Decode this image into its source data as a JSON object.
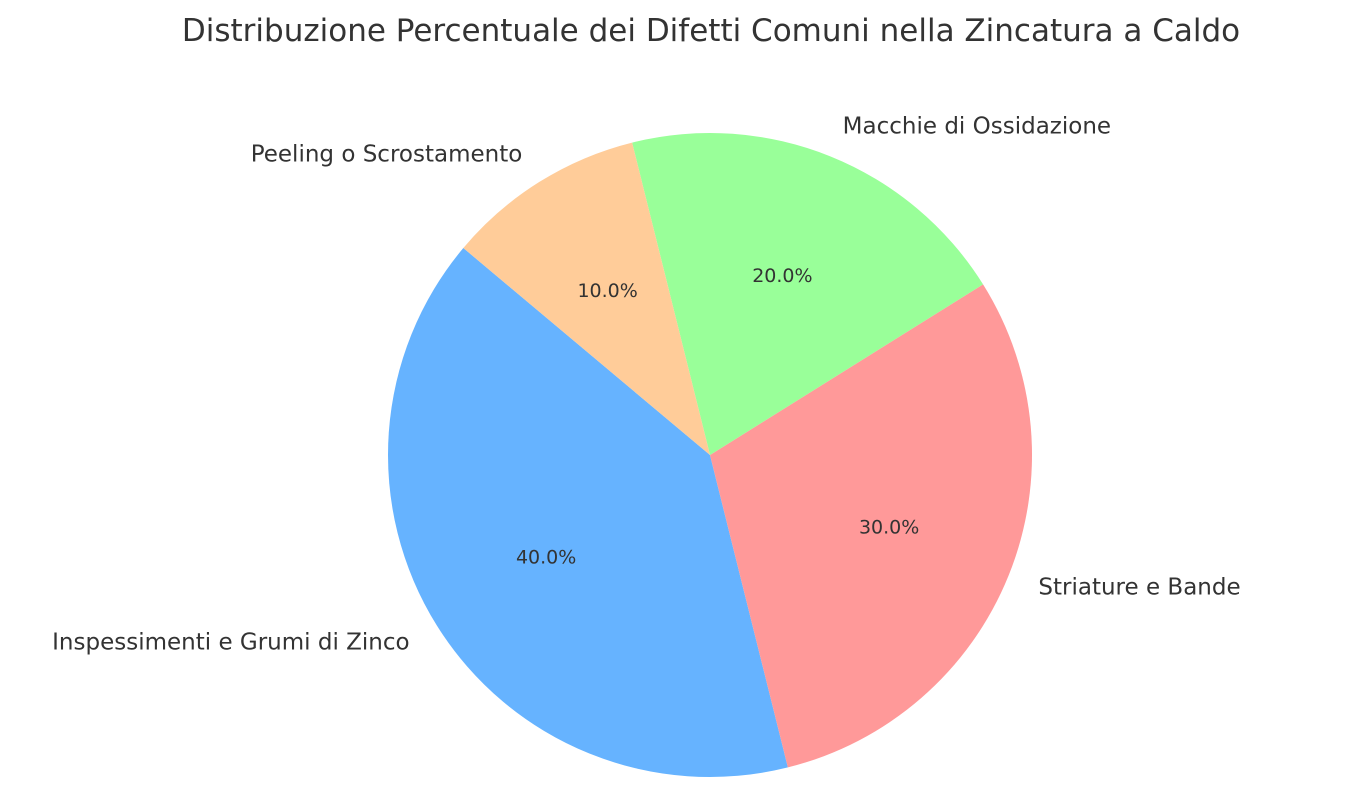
{
  "chart_data": {
    "type": "pie",
    "title": "Distribuzione Percentuale dei Difetti Comuni nella Zincatura a Caldo",
    "start_angle_deg": 140,
    "direction": "counterclockwise",
    "slices": [
      {
        "label": "Inspessimenti e Grumi di Zinco",
        "value": 40.0,
        "pct_label": "40.0%",
        "color": "#66b3ff"
      },
      {
        "label": "Striature e Bande",
        "value": 30.0,
        "pct_label": "30.0%",
        "color": "#ff9999"
      },
      {
        "label": "Macchie di Ossidazione",
        "value": 20.0,
        "pct_label": "20.0%",
        "color": "#99ff99"
      },
      {
        "label": "Peeling o Scrostamento",
        "value": 10.0,
        "pct_label": "10.0%",
        "color": "#ffcc99"
      }
    ]
  }
}
